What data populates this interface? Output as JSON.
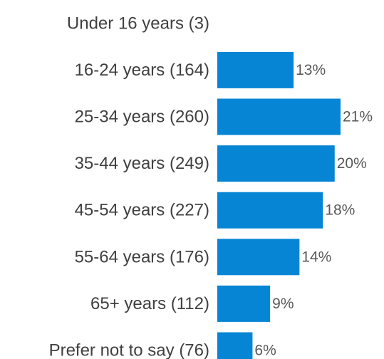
{
  "chart_data": {
    "type": "bar",
    "orientation": "horizontal",
    "categories": [
      "Under 16 years (3)",
      "16-24 years (164)",
      "25-34 years (260)",
      "35-44 years (249)",
      "45-54 years (227)",
      "55-64 years (176)",
      "65+ years (112)",
      "Prefer not to say (76)"
    ],
    "values": [
      0,
      13,
      21,
      20,
      18,
      14,
      9,
      6
    ],
    "value_labels": [
      "",
      "13%",
      "21%",
      "20%",
      "18%",
      "14%",
      "9%",
      "6%"
    ],
    "title": "",
    "xlabel": "",
    "ylabel": "",
    "xlim": [
      0,
      21
    ],
    "grid": false,
    "legend": "none",
    "bar_color": "#0685D4"
  }
}
